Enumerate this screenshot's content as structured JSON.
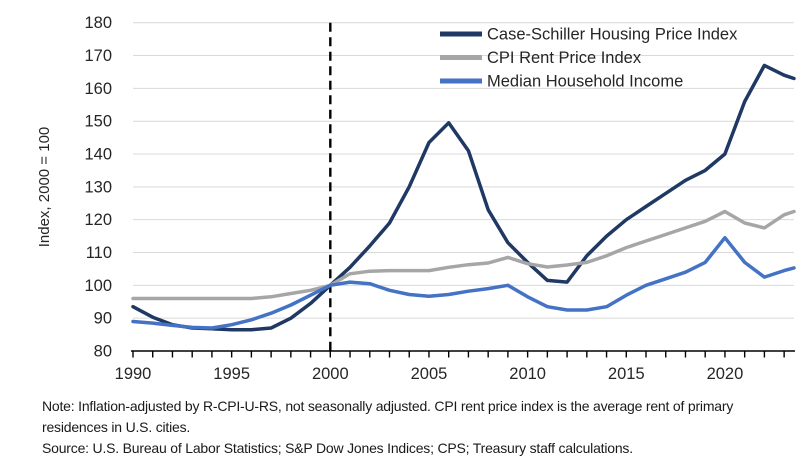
{
  "chart_data": {
    "type": "line",
    "title": "",
    "xlabel": "",
    "ylabel": "Index, 2000 = 100",
    "ylim": [
      80,
      180
    ],
    "xlim": [
      1990,
      2023.5
    ],
    "grid": true,
    "legend_position": "top-right",
    "y_ticks": [
      80,
      90,
      100,
      110,
      120,
      130,
      140,
      150,
      160,
      170,
      180
    ],
    "x_tick_labels": [
      1990,
      1995,
      2000,
      2005,
      2010,
      2015,
      2020
    ],
    "x_minor_tick_step": 1,
    "annotations": [
      {
        "type": "vline",
        "x": 2000,
        "style": "dashed",
        "color": "#000000"
      }
    ],
    "x": [
      1990,
      1991,
      1992,
      1993,
      1994,
      1995,
      1996,
      1997,
      1998,
      1999,
      2000,
      2001,
      2002,
      2003,
      2004,
      2005,
      2006,
      2007,
      2008,
      2009,
      2010,
      2011,
      2012,
      2013,
      2014,
      2015,
      2016,
      2017,
      2018,
      2019,
      2020,
      2021,
      2022,
      2023,
      2023.5
    ],
    "series": [
      {
        "name": "Case-Schiller Housing Price Index",
        "color": "#1F3864",
        "values": [
          93.5,
          90.3,
          88,
          87,
          86.8,
          86.5,
          86.5,
          87,
          90,
          94.5,
          100,
          105.5,
          112,
          119,
          130,
          143.5,
          149.5,
          141,
          123,
          113,
          107,
          101.5,
          101,
          109,
          115,
          120,
          124,
          128,
          132,
          135,
          140,
          156,
          167,
          164,
          163
        ]
      },
      {
        "name": "CPI Rent Price Index",
        "color": "#A6A6A6",
        "values": [
          96,
          96,
          96,
          96,
          96,
          96,
          96,
          96.5,
          97.5,
          98.5,
          100,
          103.5,
          104.3,
          104.5,
          104.5,
          104.5,
          105.5,
          106.3,
          106.8,
          108.5,
          106.6,
          105.6,
          106.2,
          107,
          109,
          111.5,
          113.5,
          115.5,
          117.5,
          119.5,
          122.5,
          119,
          117.5,
          121.5,
          122.5
        ]
      },
      {
        "name": "Median Household Income",
        "color": "#4472C4",
        "values": [
          89,
          88.5,
          87.8,
          87.2,
          87,
          88,
          89.5,
          91.5,
          94,
          97,
          100,
          101,
          100.5,
          98.5,
          97.2,
          96.7,
          97.2,
          98.2,
          99,
          100,
          96.5,
          93.5,
          92.5,
          92.5,
          93.5,
          97,
          100,
          102,
          104,
          107,
          114.5,
          107,
          102.5,
          104.5,
          105.3
        ]
      }
    ],
    "colors": {
      "gridline": "#D9D9D9",
      "axis": "#000000",
      "tick_label": "#262626",
      "legend_text": "#262626",
      "axis_title": "#262626"
    }
  },
  "notes": {
    "note": "Note: Inflation-adjusted by R-CPI-U-RS, not seasonally adjusted. CPI rent price index is the average rent of primary residences in U.S. cities.",
    "source": "Source: U.S. Bureau of Labor Statistics; S&P Dow Jones Indices; CPS; Treasury staff calculations."
  }
}
